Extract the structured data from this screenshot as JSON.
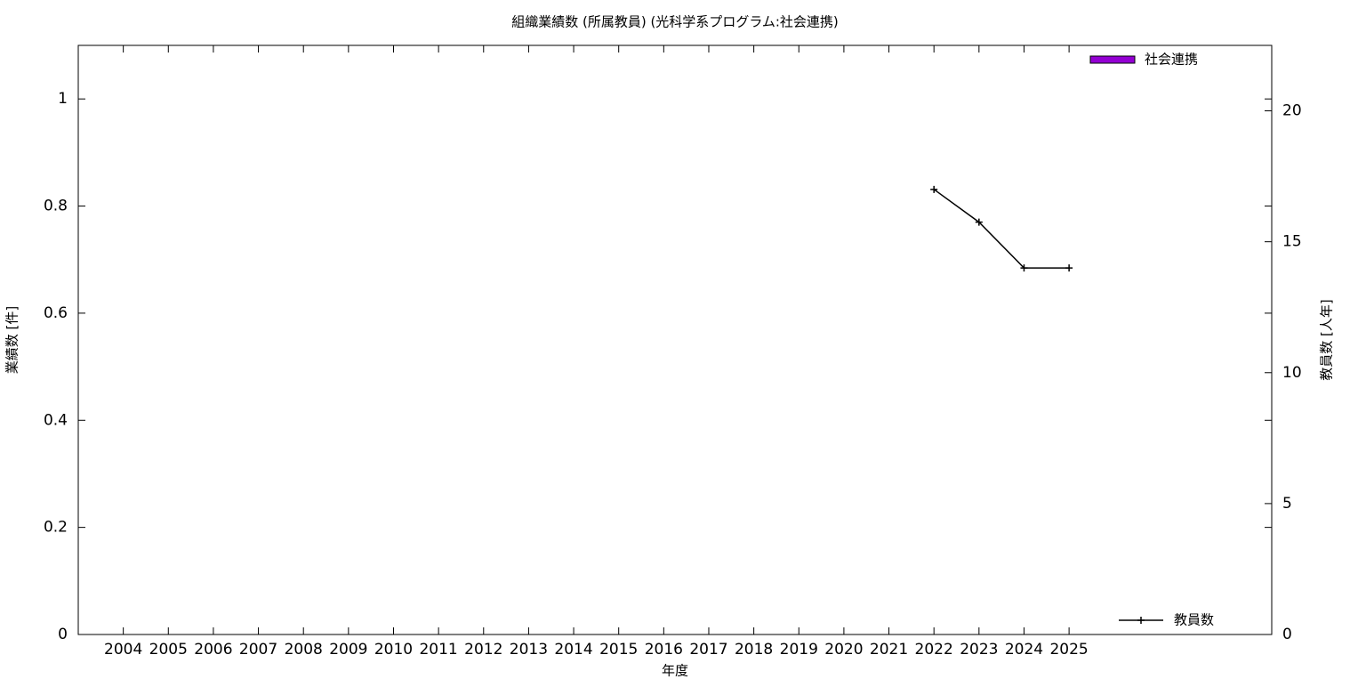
{
  "chart_data": {
    "type": "bar",
    "title": "組織業績数 (所属教員) (光科学系プログラム:社会連携)",
    "x_label": "年度",
    "y_label": "業績数 [件]",
    "y2_label": "教員数 [人年]",
    "categories": [
      "2004",
      "2005",
      "2006",
      "2007",
      "2008",
      "2009",
      "2010",
      "2011",
      "2012",
      "2013",
      "2014",
      "2015",
      "2016",
      "2017",
      "2018",
      "2019",
      "2020",
      "2021",
      "2022",
      "2023",
      "2024",
      "2025"
    ],
    "series": [
      {
        "name": "社会連携",
        "type": "bar",
        "color": "#9400d3",
        "values": [
          0,
          0,
          0,
          0,
          0,
          0,
          0,
          0,
          0,
          0,
          0,
          0,
          0,
          0,
          0,
          0,
          0,
          0,
          0,
          0,
          0,
          0
        ]
      },
      {
        "name": "教員数",
        "type": "line",
        "axis": "y2",
        "color": "#000000",
        "values": [
          null,
          null,
          null,
          null,
          null,
          null,
          null,
          null,
          null,
          null,
          null,
          null,
          null,
          null,
          null,
          null,
          null,
          null,
          17,
          15.75,
          14,
          14
        ]
      }
    ],
    "ylim": [
      0,
      1.1
    ],
    "yticks": [
      0,
      0.2,
      0.4,
      0.6,
      0.8,
      1
    ],
    "y2lim": [
      0,
      22.5
    ],
    "y2ticks": [
      0,
      5,
      10,
      15,
      20
    ],
    "grid": false,
    "legend_positions": [
      "top-right",
      "bottom-right"
    ]
  }
}
